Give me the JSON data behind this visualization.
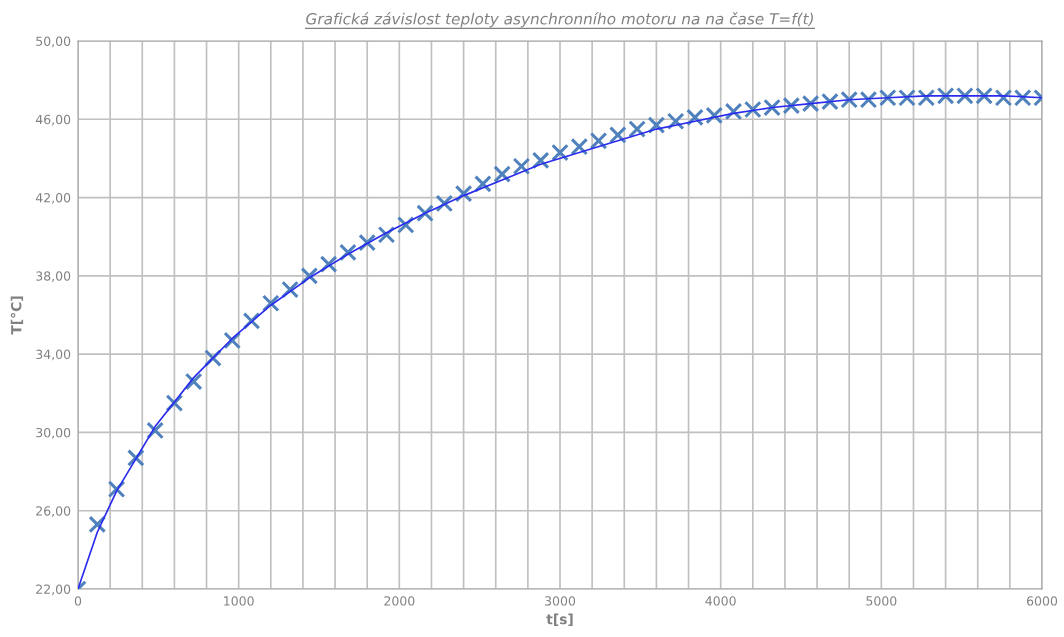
{
  "chart_data": {
    "type": "scatter",
    "title": "Grafická závislost teploty asynchronního motoru na na čase T=f(t)",
    "xlabel": "t[s]",
    "ylabel": "T[°C]",
    "grid": true,
    "legend": false,
    "xlim": [
      0,
      6000
    ],
    "ylim": [
      22,
      50
    ],
    "xticks": [
      0,
      {
        "value": 200,
        "label": null
      },
      {
        "value": 400,
        "label": null
      },
      {
        "value": 600,
        "label": null
      },
      {
        "value": 800,
        "label": null
      },
      1000,
      {
        "value": 1200,
        "label": null
      },
      {
        "value": 1400,
        "label": null
      },
      {
        "value": 1600,
        "label": null
      },
      {
        "value": 1800,
        "label": null
      },
      2000,
      {
        "value": 2200,
        "label": null
      },
      {
        "value": 2400,
        "label": null
      },
      {
        "value": 2600,
        "label": null
      },
      {
        "value": 2800,
        "label": null
      },
      3000,
      {
        "value": 3200,
        "label": null
      },
      {
        "value": 3400,
        "label": null
      },
      {
        "value": 3600,
        "label": null
      },
      {
        "value": 3800,
        "label": null
      },
      4000,
      {
        "value": 4200,
        "label": null
      },
      {
        "value": 4400,
        "label": null
      },
      {
        "value": 4600,
        "label": null
      },
      {
        "value": 4800,
        "label": null
      },
      5000,
      {
        "value": 5200,
        "label": null
      },
      {
        "value": 5400,
        "label": null
      },
      {
        "value": 5600,
        "label": null
      },
      {
        "value": 5800,
        "label": null
      },
      6000
    ],
    "yticks": [
      {
        "value": 22,
        "label": "22,00"
      },
      {
        "value": 26,
        "label": "26,00"
      },
      {
        "value": 30,
        "label": "30,00"
      },
      {
        "value": 34,
        "label": "34,00"
      },
      {
        "value": 38,
        "label": "38,00"
      },
      {
        "value": 42,
        "label": "42,00"
      },
      {
        "value": 46,
        "label": "46,00"
      },
      {
        "value": 50,
        "label": "50,00"
      }
    ],
    "series": [
      {
        "marker": "cross",
        "color": "#4f81bd",
        "x": [
          0,
          120,
          240,
          360,
          480,
          600,
          720,
          840,
          960,
          1080,
          1200,
          1320,
          1440,
          1560,
          1680,
          1800,
          1920,
          2040,
          2160,
          2280,
          2400,
          2520,
          2640,
          2760,
          2880,
          3000,
          3120,
          3240,
          3360,
          3480,
          3600,
          3720,
          3840,
          3960,
          4080,
          4200,
          4320,
          4440,
          4560,
          4680,
          4800,
          4920,
          5040,
          5160,
          5280,
          5400,
          5520,
          5640,
          5760,
          5880,
          6000
        ],
        "values": [
          22.0,
          25.3,
          27.1,
          28.7,
          30.1,
          31.5,
          32.6,
          33.8,
          34.7,
          35.7,
          36.6,
          37.3,
          38.0,
          38.6,
          39.2,
          39.7,
          40.1,
          40.6,
          41.2,
          41.7,
          42.2,
          42.7,
          43.2,
          43.6,
          43.9,
          44.3,
          44.6,
          44.9,
          45.2,
          45.5,
          45.7,
          45.9,
          46.1,
          46.2,
          46.4,
          46.5,
          46.6,
          46.7,
          46.8,
          46.9,
          47.0,
          47.0,
          47.1,
          47.1,
          47.1,
          47.2,
          47.2,
          47.2,
          47.1,
          47.1,
          47.1
        ]
      },
      {
        "type": "line",
        "line_style": "solid",
        "color": "#2b2bf0",
        "x": [
          0,
          120,
          240,
          480,
          720,
          960,
          1200,
          1440,
          1680,
          1920,
          2160,
          2400,
          2640,
          2880,
          3120,
          3360,
          3600,
          3840,
          4080,
          4320,
          4560,
          4800,
          5040,
          5280,
          5520,
          5760,
          6000
        ],
        "values": [
          22.0,
          24.9,
          27.0,
          30.3,
          32.8,
          34.8,
          36.5,
          37.9,
          39.1,
          40.2,
          41.2,
          42.1,
          42.9,
          43.7,
          44.3,
          44.9,
          45.5,
          45.9,
          46.3,
          46.6,
          46.8,
          47.0,
          47.1,
          47.2,
          47.2,
          47.2,
          47.1
        ]
      }
    ]
  }
}
